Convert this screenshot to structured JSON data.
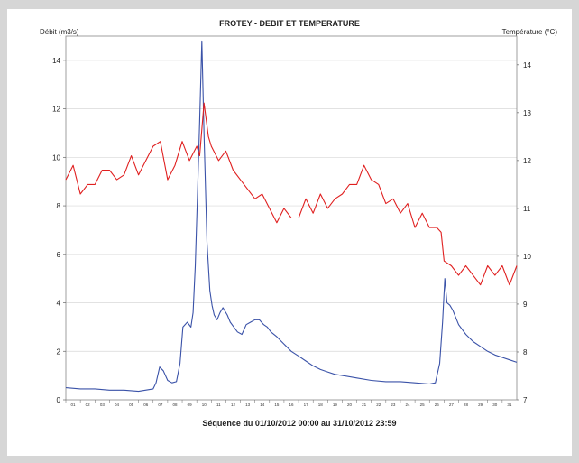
{
  "chart_data": {
    "type": "line",
    "title": "FROTEY - DEBIT ET TEMPERATURE",
    "ylabel_left": "Débit (m3/s)",
    "ylabel_right": "Température (°C)",
    "footer": "Séquence du  01/10/2012 00:00  au  31/10/2012 23:59",
    "ylim_left": [
      0,
      15
    ],
    "ylim_right": [
      7,
      14.6
    ],
    "yticks_left": [
      0,
      2,
      4,
      6,
      8,
      10,
      12,
      14
    ],
    "yticks_right": [
      7,
      8,
      9,
      10,
      11,
      12,
      13,
      14
    ],
    "xlim": [
      1,
      32
    ],
    "x_tick_labels": [
      "01",
      "02",
      "03",
      "04",
      "05",
      "06",
      "07",
      "08",
      "09",
      "10",
      "11",
      "12",
      "13",
      "14",
      "15",
      "16",
      "17",
      "18",
      "19",
      "20",
      "21",
      "22",
      "23",
      "24",
      "25",
      "26",
      "27",
      "28",
      "29",
      "30",
      "31"
    ],
    "grid": true,
    "series": [
      {
        "axis": "left",
        "color": "#3a52a8",
        "x": [
          1,
          2,
          3,
          4,
          5,
          6,
          7,
          7.2,
          7.45,
          7.7,
          8,
          8.3,
          8.6,
          8.85,
          9.05,
          9.35,
          9.6,
          9.75,
          9.9,
          10.05,
          10.2,
          10.35,
          10.5,
          10.7,
          10.9,
          11.05,
          11.2,
          11.4,
          11.6,
          11.8,
          11.9,
          12.1,
          12.3,
          12.55,
          12.8,
          13.1,
          13.4,
          13.7,
          14,
          14.3,
          14.6,
          14.85,
          15.1,
          15.5,
          16,
          16.5,
          17,
          17.5,
          18,
          18.5,
          19,
          19.5,
          20,
          21,
          22,
          23,
          24,
          25,
          26,
          26.4,
          26.7,
          26.9,
          27.05,
          27.2,
          27.4,
          27.6,
          28,
          28.5,
          29,
          29.5,
          30,
          30.5,
          31,
          31.5,
          32
        ],
        "values": [
          0.5,
          0.45,
          0.45,
          0.4,
          0.4,
          0.35,
          0.45,
          0.7,
          1.35,
          1.2,
          0.8,
          0.7,
          0.75,
          1.5,
          3.0,
          3.2,
          3.0,
          3.6,
          5.5,
          8.5,
          11.5,
          14.8,
          11.0,
          6.5,
          4.5,
          3.9,
          3.5,
          3.3,
          3.6,
          3.8,
          3.7,
          3.5,
          3.2,
          3.0,
          2.8,
          2.7,
          3.1,
          3.2,
          3.3,
          3.3,
          3.1,
          3.0,
          2.8,
          2.6,
          2.3,
          2.0,
          1.8,
          1.6,
          1.4,
          1.25,
          1.15,
          1.05,
          1.0,
          0.9,
          0.8,
          0.75,
          0.75,
          0.7,
          0.65,
          0.7,
          1.5,
          3.2,
          5.0,
          4.0,
          3.9,
          3.7,
          3.1,
          2.7,
          2.4,
          2.2,
          2.0,
          1.85,
          1.75,
          1.65,
          1.55
        ]
      },
      {
        "axis": "right",
        "color": "#e02020",
        "x": [
          1,
          1.5,
          2,
          2.5,
          3,
          3.5,
          4,
          4.5,
          5,
          5.5,
          6,
          6.5,
          7,
          7.5,
          8,
          8.5,
          9,
          9.5,
          10,
          10.2,
          10.5,
          10.8,
          11,
          11.5,
          12,
          12.5,
          13,
          13.5,
          14,
          14.5,
          15,
          15.5,
          16,
          16.5,
          17,
          17.5,
          18,
          18.5,
          19,
          19.5,
          20,
          20.5,
          21,
          21.5,
          22,
          22.5,
          23,
          23.5,
          24,
          24.5,
          25,
          25.5,
          26,
          26.5,
          26.8,
          27,
          27.5,
          28,
          28.5,
          29,
          29.5,
          30,
          30.5,
          31,
          31.5,
          32
        ],
        "values": [
          11.6,
          11.9,
          11.3,
          11.5,
          11.5,
          11.8,
          11.8,
          11.6,
          11.7,
          12.1,
          11.7,
          12.0,
          12.3,
          12.4,
          11.6,
          11.9,
          12.4,
          12.0,
          12.3,
          12.1,
          13.2,
          12.5,
          12.3,
          12.0,
          12.2,
          11.8,
          11.6,
          11.4,
          11.2,
          11.3,
          11.0,
          10.7,
          11.0,
          10.8,
          10.8,
          11.2,
          10.9,
          11.3,
          11.0,
          11.2,
          11.3,
          11.5,
          11.5,
          11.9,
          11.6,
          11.5,
          11.1,
          11.2,
          10.9,
          11.1,
          10.6,
          10.9,
          10.6,
          10.6,
          10.5,
          9.9,
          9.8,
          9.6,
          9.8,
          9.6,
          9.4,
          9.8,
          9.6,
          9.8,
          9.4,
          9.8
        ]
      }
    ]
  }
}
